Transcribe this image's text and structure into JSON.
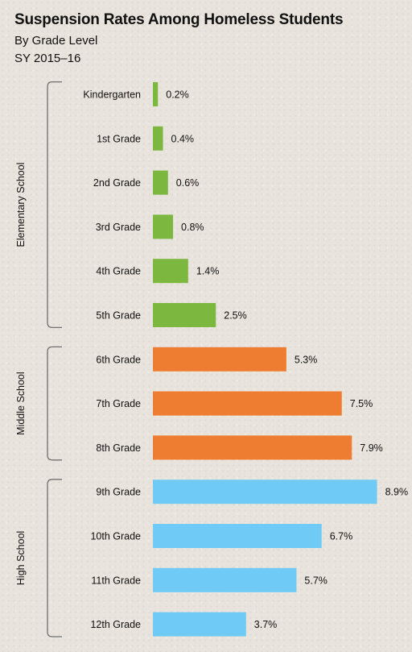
{
  "chart_data": {
    "type": "bar",
    "orientation": "horizontal",
    "title": "Suspension Rates Among Homeless Students",
    "subtitle_lines": [
      "By Grade Level",
      "SY 2015–16"
    ],
    "unit_suffix": "%",
    "xlim": [
      0,
      9.5
    ],
    "categories": [
      "Kindergarten",
      "1st Grade",
      "2nd Grade",
      "3rd Grade",
      "4th Grade",
      "5th Grade",
      "6th Grade",
      "7th Grade",
      "8th Grade",
      "9th Grade",
      "10th Grade",
      "11th Grade",
      "12th Grade"
    ],
    "values": [
      0.2,
      0.4,
      0.6,
      0.8,
      1.4,
      2.5,
      5.3,
      7.5,
      7.9,
      8.9,
      6.7,
      5.7,
      3.7
    ],
    "value_labels": [
      "0.2%",
      "0.4%",
      "0.6%",
      "0.8%",
      "1.4%",
      "2.5%",
      "5.3%",
      "7.5%",
      "7.9%",
      "8.9%",
      "6.7%",
      "5.7%",
      "3.7%"
    ],
    "groups": [
      {
        "name": "Elementary School",
        "start": 0,
        "end": 5,
        "color": "#7cb83f"
      },
      {
        "name": "Middle School",
        "start": 6,
        "end": 8,
        "color": "#ef7d31"
      },
      {
        "name": "High School",
        "start": 9,
        "end": 12,
        "color": "#6fcbf5"
      }
    ],
    "grid": false,
    "legend": "none"
  }
}
